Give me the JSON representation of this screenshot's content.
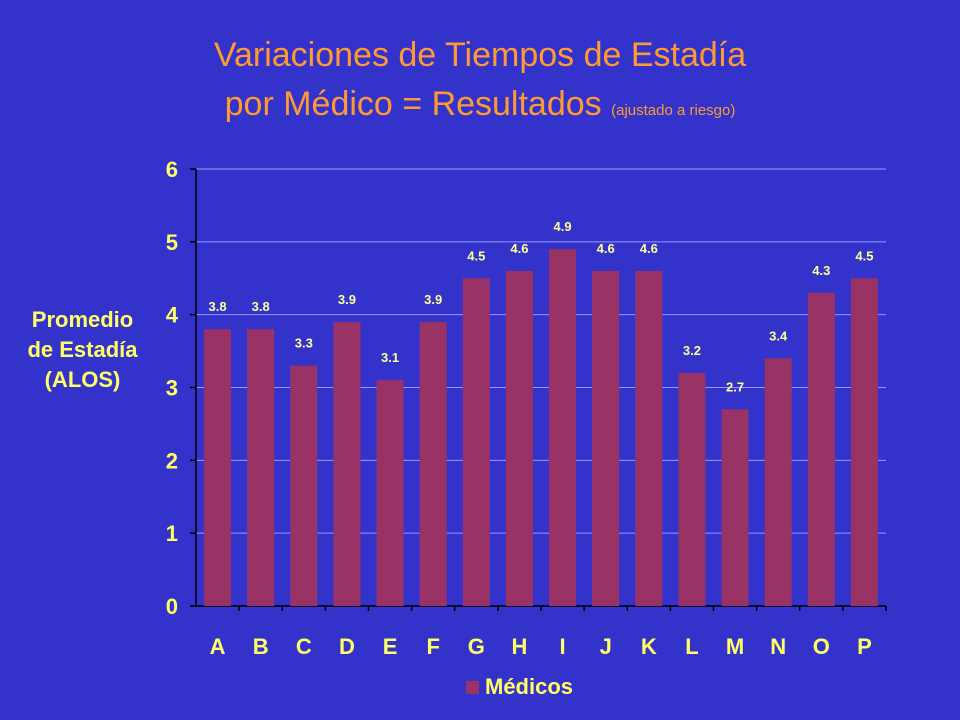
{
  "title": {
    "line1": "Variaciones de Tiempos de Estadía",
    "line2_main": "por Médico = Resultados",
    "line2_note": "(ajustado a riesgo)"
  },
  "colors": {
    "background": "#3333cc",
    "title": "#ff9933",
    "label": "#ffff66",
    "bar": "#993366",
    "data_label": "#ffff99",
    "axis": "#000000",
    "grid": "#9999ff"
  },
  "chart_data": {
    "type": "bar",
    "ylabel": [
      "Promedio",
      "de Estadía",
      "(ALOS)"
    ],
    "xlabel": "",
    "ylim": [
      0,
      6
    ],
    "yticks": [
      "0",
      "1",
      "2",
      "3",
      "4",
      "5",
      "6"
    ],
    "grid": true,
    "legend_position": "bottom",
    "categories": [
      "A",
      "B",
      "C",
      "D",
      "E",
      "F",
      "G",
      "H",
      "I",
      "J",
      "K",
      "L",
      "M",
      "N",
      "O",
      "P"
    ],
    "series": [
      {
        "name": "Médicos",
        "values": [
          3.8,
          3.8,
          3.3,
          3.9,
          3.1,
          3.9,
          4.5,
          4.6,
          4.9,
          4.6,
          4.6,
          3.2,
          2.7,
          3.4,
          4.3,
          4.5
        ],
        "labels": [
          "3.8",
          "3.8",
          "3.3",
          "3.9",
          "3.1",
          "3.9",
          "4.5",
          "4.6",
          "4.9",
          "4.6",
          "4.6",
          "3.2",
          "2.7",
          "3.4",
          "4.3",
          "4.5"
        ]
      }
    ]
  }
}
